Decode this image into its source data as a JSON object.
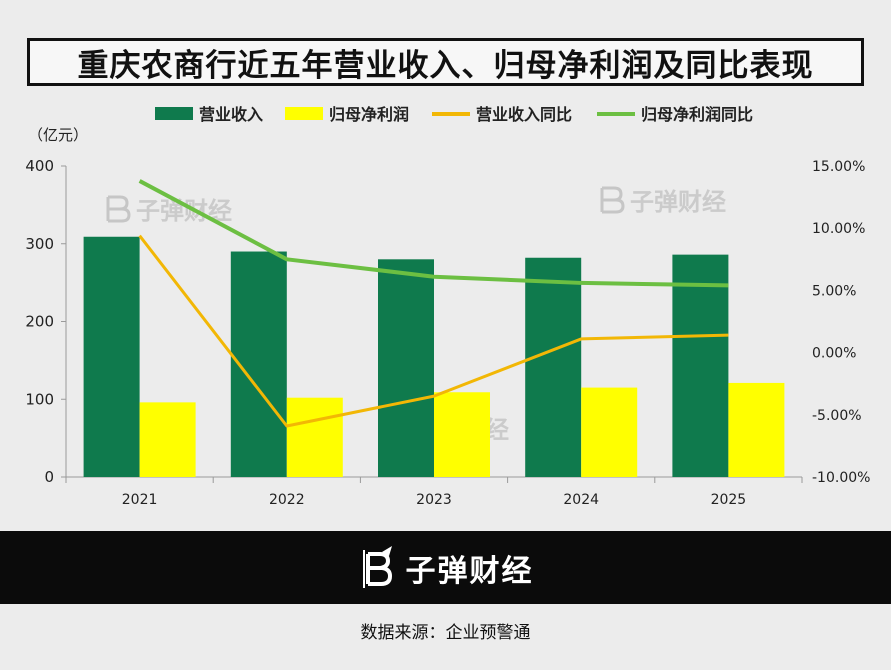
{
  "title": "重庆农商行近五年营业收入、归母净利润及同比表现",
  "watermark": "子弹财经",
  "brand": {
    "name": "子弹财经",
    "logo_icon": "bullet-coin-logo-icon"
  },
  "source": "数据来源：企业预警通",
  "colors": {
    "revenue": "#0f7a4d",
    "profit": "#ffff00",
    "revenue_yoy": "#f2b705",
    "profit_yoy": "#6cbf42"
  },
  "chart_data": {
    "type": "bar",
    "categories": [
      "2021",
      "2022",
      "2023",
      "2024",
      "2025"
    ],
    "y_left": {
      "unit": "（亿元）",
      "ylim": [
        0,
        400
      ],
      "ticks": [
        0,
        100,
        200,
        300,
        400
      ]
    },
    "y_right": {
      "ylim": [
        -10,
        15
      ],
      "ticks": [
        "-10.00%",
        "-5.00%",
        "0.00%",
        "5.00%",
        "10.00%",
        "15.00%"
      ]
    },
    "grid": false,
    "legend_position": "top",
    "series": [
      {
        "name": "营业收入",
        "type": "bar",
        "axis": "left",
        "values": [
          309,
          290,
          280,
          282,
          286
        ]
      },
      {
        "name": "归母净利润",
        "type": "bar",
        "axis": "left",
        "values": [
          96,
          102,
          109,
          115,
          121
        ]
      },
      {
        "name": "营业收入同比",
        "type": "line",
        "axis": "right",
        "values": [
          9.4,
          -5.9,
          -3.5,
          1.1,
          1.4
        ]
      },
      {
        "name": "归母净利润同比",
        "type": "line",
        "axis": "right",
        "values": [
          13.8,
          7.5,
          6.1,
          5.6,
          5.4
        ]
      }
    ]
  }
}
